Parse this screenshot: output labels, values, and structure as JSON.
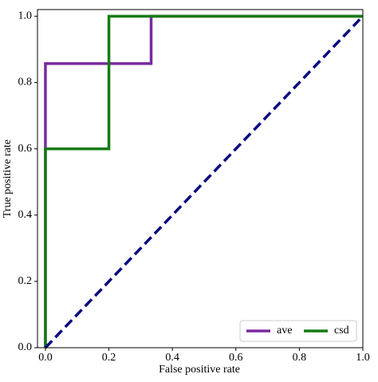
{
  "chart_data": {
    "type": "line",
    "xlabel": "False positive rate",
    "ylabel": "True positive rate",
    "series": [
      {
        "name": "ave",
        "color": "#7b2a9e",
        "x": [
          0,
          0,
          0.333,
          0.333,
          1
        ],
        "values": [
          0,
          0.857,
          0.857,
          1,
          1
        ]
      },
      {
        "name": "csd",
        "color": "#137b13",
        "x": [
          0,
          0,
          0.2,
          0.2,
          1
        ],
        "values": [
          0,
          0.6,
          0.6,
          1,
          1
        ]
      }
    ],
    "diagonal": {
      "x": [
        0,
        1
      ],
      "values": [
        0,
        1
      ],
      "color": "#0a0a80",
      "dashed": true
    },
    "xlim": [
      -0.025,
      1.0
    ],
    "ylim": [
      0,
      1.02
    ],
    "xticks": [
      {
        "value": 0,
        "label": "0.0"
      },
      0.2,
      0.4,
      0.6,
      0.8,
      {
        "value": 1,
        "label": "1.0"
      }
    ],
    "yticks": [
      {
        "value": 0,
        "label": "0.0"
      },
      0.2,
      0.4,
      0.6,
      0.8,
      {
        "value": 1,
        "label": "1.0"
      }
    ],
    "legend": "lower right"
  }
}
